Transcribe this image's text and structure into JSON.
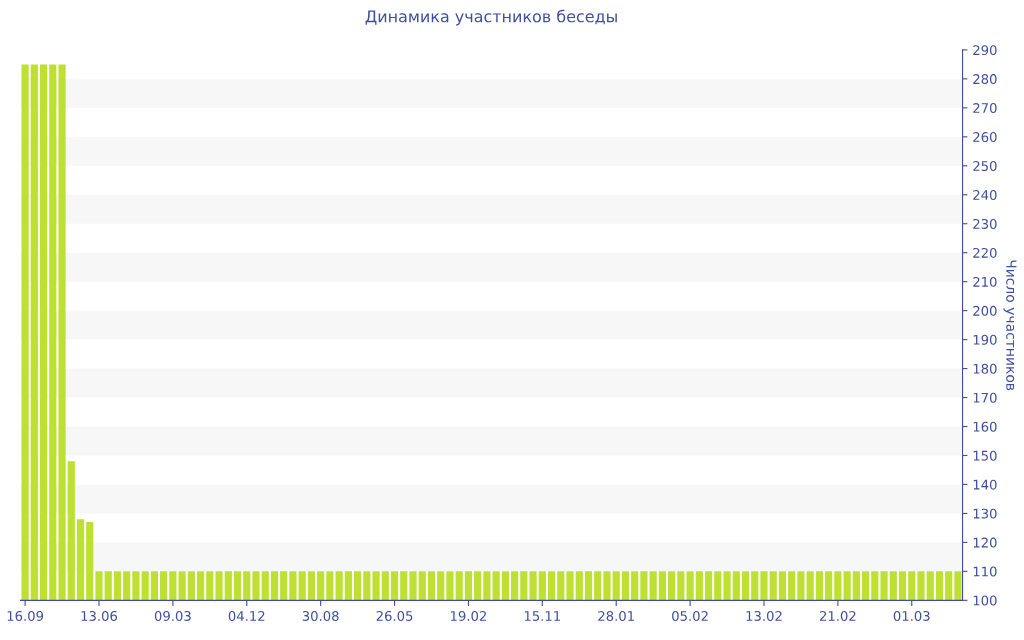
{
  "chart_data": {
    "type": "bar",
    "title": "Динамика участников беседы",
    "ylabel": "Число участников",
    "categories": [
      "16.09",
      null,
      null,
      null,
      null,
      null,
      null,
      null,
      "13.06",
      null,
      null,
      null,
      null,
      null,
      null,
      null,
      "09.03",
      null,
      null,
      null,
      null,
      null,
      null,
      null,
      "04.12",
      null,
      null,
      null,
      null,
      null,
      null,
      null,
      "30.08",
      null,
      null,
      null,
      null,
      null,
      null,
      null,
      "26.05",
      null,
      null,
      null,
      null,
      null,
      null,
      null,
      "19.02",
      null,
      null,
      null,
      null,
      null,
      null,
      null,
      "15.11",
      null,
      null,
      null,
      null,
      null,
      null,
      null,
      "28.01",
      null,
      null,
      null,
      null,
      null,
      null,
      null,
      "05.02",
      null,
      null,
      null,
      null,
      null,
      null,
      null,
      "13.02",
      null,
      null,
      null,
      null,
      null,
      null,
      null,
      "21.02",
      null,
      null,
      null,
      null,
      null,
      null,
      null,
      "01.03",
      null,
      null,
      null,
      null,
      null
    ],
    "values": [
      285,
      285,
      285,
      285,
      285,
      148,
      128,
      127,
      110,
      110,
      110,
      110,
      110,
      110,
      110,
      110,
      110,
      110,
      110,
      110,
      110,
      110,
      110,
      110,
      110,
      110,
      110,
      110,
      110,
      110,
      110,
      110,
      110,
      110,
      110,
      110,
      110,
      110,
      110,
      110,
      110,
      110,
      110,
      110,
      110,
      110,
      110,
      110,
      110,
      110,
      110,
      110,
      110,
      110,
      110,
      110,
      110,
      110,
      110,
      110,
      110,
      110,
      110,
      110,
      110,
      110,
      110,
      110,
      110,
      110,
      110,
      110,
      110,
      110,
      110,
      110,
      110,
      110,
      110,
      110,
      110,
      110,
      110,
      110,
      110,
      110,
      110,
      110,
      110,
      110,
      110,
      110,
      110,
      110,
      110,
      110,
      110,
      110,
      110,
      110,
      110,
      110
    ],
    "color": "#bde032",
    "ylim": [
      100,
      290
    ],
    "yticks": [
      100,
      110,
      120,
      130,
      140,
      150,
      160,
      170,
      180,
      190,
      200,
      210,
      220,
      230,
      240,
      250,
      260,
      270,
      280,
      290
    ],
    "bands": [
      {
        "axis": "y",
        "from": 110,
        "to": 120,
        "color": "#f7f7f7"
      },
      {
        "axis": "y",
        "from": 130,
        "to": 140,
        "color": "#f7f7f7"
      },
      {
        "axis": "y",
        "from": 150,
        "to": 160,
        "color": "#f7f7f7"
      },
      {
        "axis": "y",
        "from": 170,
        "to": 180,
        "color": "#f7f7f7"
      },
      {
        "axis": "y",
        "from": 190,
        "to": 200,
        "color": "#f7f7f7"
      },
      {
        "axis": "y",
        "from": 210,
        "to": 220,
        "color": "#f7f7f7"
      },
      {
        "axis": "y",
        "from": 230,
        "to": 240,
        "color": "#f7f7f7"
      },
      {
        "axis": "y",
        "from": 250,
        "to": 260,
        "color": "#f7f7f7"
      },
      {
        "axis": "y",
        "from": 270,
        "to": 280,
        "color": "#f7f7f7"
      }
    ]
  }
}
